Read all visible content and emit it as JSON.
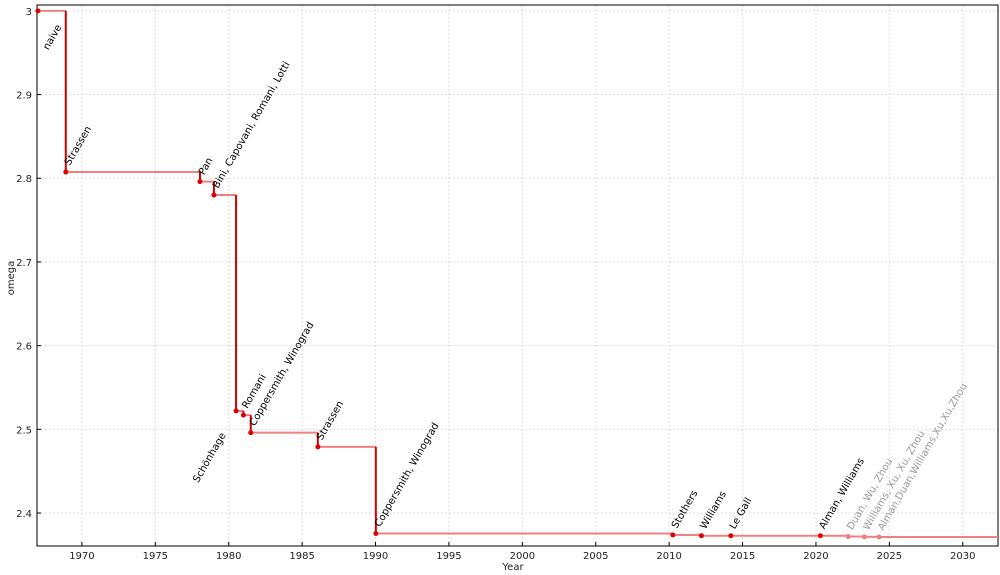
{
  "chart_data": {
    "type": "step",
    "x_label": "Year",
    "y_label": "omega",
    "xlim": [
      1966.94,
      2032.4
    ],
    "ylim": [
      2.3606,
      3.007
    ],
    "xticks": [
      1970,
      1975,
      1980,
      1985,
      1990,
      1995,
      2000,
      2005,
      2010,
      2015,
      2020,
      2025,
      2030
    ],
    "yticks": [
      2.4,
      2.5,
      2.6,
      2.7,
      2.8,
      2.9,
      3
    ],
    "grid": true,
    "line_color": "#f08080",
    "drop_color": "#cc0000",
    "points": [
      {
        "label": "naive",
        "x": 1967,
        "y": 3,
        "color": "#e00000",
        "label_color": "#000000"
      },
      {
        "label": "Strassen",
        "x": 1968.9,
        "y": 2.8074,
        "color": "#e00000",
        "label_color": "#000000"
      },
      {
        "label": "Pan",
        "x": 1978.04,
        "y": 2.796,
        "color": "#e00000",
        "label_color": "#000000"
      },
      {
        "label": "Bini, Capovani, Romani, Lotti",
        "x": 1978.99,
        "y": 2.78,
        "color": "#e00000",
        "label_color": "#000000"
      },
      {
        "label": "Schönhage",
        "x": 1980.5,
        "y": 2.522,
        "color": "#e00000",
        "label_color": "#000000"
      },
      {
        "label": "Romani",
        "x": 1981.0,
        "y": 2.517,
        "color": "#e00000",
        "label_color": "#000000"
      },
      {
        "label": "Coppersmith, Winograd",
        "x": 1981.5,
        "y": 2.496,
        "color": "#e00000",
        "label_color": "#000000"
      },
      {
        "label": "Strassen",
        "x": 1986.07,
        "y": 2.479,
        "color": "#e00000",
        "label_color": "#000000"
      },
      {
        "label": "Coppersmith, Winograd",
        "x": 1990.02,
        "y": 2.3755,
        "color": "#e00000",
        "label_color": "#000000"
      },
      {
        "label": "Stothers",
        "x": 2010.25,
        "y": 2.3737,
        "color": "#e00000",
        "label_color": "#000000"
      },
      {
        "label": "Williams",
        "x": 2012.2,
        "y": 2.3729,
        "color": "#e00000",
        "label_color": "#000000"
      },
      {
        "label": "Le Gall",
        "x": 2014.2,
        "y": 2.37286,
        "color": "#e00000",
        "label_color": "#000000"
      },
      {
        "label": "Alman, Williams",
        "x": 2020.3,
        "y": 2.37285,
        "color": "#e00000",
        "label_color": "#000000"
      },
      {
        "label": "Duan, Wu, Zhou",
        "x": 2022.2,
        "y": 2.37188,
        "color": "#f08080",
        "label_color": "#999999"
      },
      {
        "label": "Williams, Xu, Xu, Zhou",
        "x": 2023.3,
        "y": 2.37155,
        "color": "#f08080",
        "label_color": "#999999"
      },
      {
        "label": "Alman,Duan,Williams,Xu,Xu,Zhou",
        "x": 2024.3,
        "y": 2.37134,
        "color": "#f08080",
        "label_color": "#999999"
      }
    ]
  }
}
